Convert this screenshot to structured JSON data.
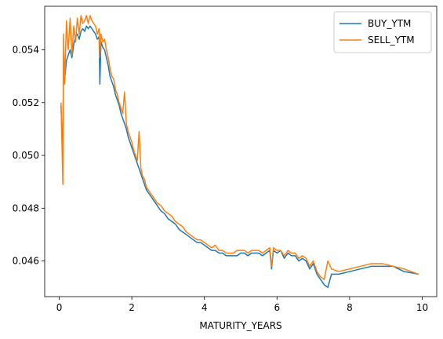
{
  "chart_data": {
    "type": "line",
    "title": "",
    "xlabel": "MATURITY_YEARS",
    "ylabel": "",
    "xlim": [
      -0.4,
      10.4
    ],
    "ylim": [
      0.04465,
      0.05565
    ],
    "x_ticks": [
      0,
      2,
      4,
      6,
      8,
      10
    ],
    "x_tick_labels": [
      "0",
      "2",
      "4",
      "6",
      "8",
      "10"
    ],
    "y_ticks": [
      0.046,
      0.048,
      0.05,
      0.052,
      0.054
    ],
    "y_tick_labels": [
      "0.046",
      "0.048",
      "0.050",
      "0.052",
      "0.054"
    ],
    "grid": false,
    "legend_position": "top-right",
    "series": [
      {
        "name": "BUY_YTM",
        "color": "#1f77b4",
        "x": [
          0.05,
          0.1,
          0.12,
          0.15,
          0.2,
          0.25,
          0.3,
          0.35,
          0.4,
          0.45,
          0.5,
          0.55,
          0.6,
          0.65,
          0.7,
          0.75,
          0.8,
          0.85,
          0.9,
          0.95,
          1.0,
          1.05,
          1.1,
          1.12,
          1.15,
          1.2,
          1.25,
          1.3,
          1.35,
          1.4,
          1.45,
          1.5,
          1.55,
          1.6,
          1.65,
          1.7,
          1.75,
          1.8,
          1.85,
          1.9,
          1.95,
          2.0,
          2.05,
          2.1,
          2.15,
          2.2,
          2.25,
          2.3,
          2.35,
          2.4,
          2.5,
          2.6,
          2.7,
          2.8,
          2.9,
          3.0,
          3.1,
          3.2,
          3.3,
          3.4,
          3.5,
          3.6,
          3.7,
          3.8,
          3.9,
          4.0,
          4.1,
          4.2,
          4.3,
          4.4,
          4.5,
          4.6,
          4.7,
          4.8,
          4.9,
          5.0,
          5.1,
          5.2,
          5.3,
          5.4,
          5.5,
          5.6,
          5.7,
          5.8,
          5.85,
          5.9,
          6.0,
          6.1,
          6.2,
          6.3,
          6.4,
          6.5,
          6.6,
          6.7,
          6.8,
          6.9,
          7.0,
          7.1,
          7.2,
          7.3,
          7.4,
          7.5,
          7.7,
          8.0,
          8.3,
          8.6,
          8.9,
          9.2,
          9.5,
          9.9
        ],
        "y": [
          0.0519,
          0.0496,
          0.0538,
          0.0529,
          0.0536,
          0.0538,
          0.054,
          0.0537,
          0.0542,
          0.0545,
          0.0546,
          0.0544,
          0.0547,
          0.0548,
          0.0547,
          0.0549,
          0.0548,
          0.0549,
          0.0548,
          0.0547,
          0.0546,
          0.0544,
          0.0545,
          0.0527,
          0.0543,
          0.0541,
          0.054,
          0.0537,
          0.0534,
          0.053,
          0.0528,
          0.0526,
          0.0523,
          0.0521,
          0.0519,
          0.0516,
          0.0514,
          0.0512,
          0.051,
          0.0507,
          0.0505,
          0.0503,
          0.0501,
          0.0499,
          0.0497,
          0.0495,
          0.0493,
          0.0491,
          0.0489,
          0.0487,
          0.0485,
          0.0483,
          0.0481,
          0.0479,
          0.0478,
          0.0476,
          0.0475,
          0.0474,
          0.0472,
          0.0471,
          0.047,
          0.0469,
          0.0468,
          0.0467,
          0.0467,
          0.0466,
          0.0465,
          0.0464,
          0.0464,
          0.0463,
          0.0463,
          0.0462,
          0.0462,
          0.0462,
          0.0462,
          0.0463,
          0.0463,
          0.0462,
          0.0463,
          0.0463,
          0.0463,
          0.0462,
          0.0463,
          0.0464,
          0.0457,
          0.0464,
          0.0463,
          0.0464,
          0.0461,
          0.0463,
          0.0462,
          0.0462,
          0.046,
          0.0461,
          0.046,
          0.0457,
          0.0459,
          0.0455,
          0.0453,
          0.0451,
          0.045,
          0.0455,
          0.0455,
          0.0456,
          0.0457,
          0.0458,
          0.0458,
          0.0458,
          0.0456,
          0.0455
        ]
      },
      {
        "name": "SELL_YTM",
        "color": "#ff7f0e",
        "x": [
          0.05,
          0.1,
          0.12,
          0.15,
          0.2,
          0.25,
          0.3,
          0.35,
          0.4,
          0.45,
          0.5,
          0.55,
          0.6,
          0.65,
          0.7,
          0.75,
          0.8,
          0.85,
          0.9,
          0.95,
          1.0,
          1.05,
          1.1,
          1.12,
          1.15,
          1.2,
          1.25,
          1.3,
          1.35,
          1.4,
          1.45,
          1.5,
          1.55,
          1.6,
          1.65,
          1.7,
          1.75,
          1.8,
          1.85,
          1.9,
          1.95,
          2.0,
          2.05,
          2.1,
          2.15,
          2.2,
          2.25,
          2.3,
          2.35,
          2.4,
          2.5,
          2.6,
          2.7,
          2.8,
          2.9,
          3.0,
          3.1,
          3.2,
          3.3,
          3.4,
          3.5,
          3.6,
          3.7,
          3.8,
          3.9,
          4.0,
          4.1,
          4.2,
          4.3,
          4.4,
          4.5,
          4.6,
          4.7,
          4.8,
          4.9,
          5.0,
          5.1,
          5.2,
          5.3,
          5.4,
          5.5,
          5.6,
          5.7,
          5.8,
          5.85,
          5.9,
          6.0,
          6.1,
          6.2,
          6.3,
          6.4,
          6.5,
          6.6,
          6.7,
          6.8,
          6.9,
          7.0,
          7.1,
          7.2,
          7.3,
          7.4,
          7.5,
          7.7,
          8.0,
          8.3,
          8.6,
          8.9,
          9.2,
          9.5,
          9.9
        ],
        "y": [
          0.052,
          0.0489,
          0.0546,
          0.0527,
          0.0551,
          0.054,
          0.0552,
          0.0538,
          0.0549,
          0.0543,
          0.0552,
          0.0546,
          0.0553,
          0.055,
          0.0551,
          0.0553,
          0.055,
          0.0553,
          0.0551,
          0.055,
          0.0549,
          0.0546,
          0.0548,
          0.0537,
          0.0546,
          0.0543,
          0.0544,
          0.054,
          0.0537,
          0.0533,
          0.053,
          0.0529,
          0.0525,
          0.0523,
          0.052,
          0.0518,
          0.0516,
          0.0524,
          0.0512,
          0.0509,
          0.0507,
          0.0505,
          0.0502,
          0.05,
          0.0498,
          0.0509,
          0.0495,
          0.0492,
          0.0491,
          0.0488,
          0.0486,
          0.0484,
          0.0482,
          0.0481,
          0.0479,
          0.0478,
          0.0477,
          0.0475,
          0.0474,
          0.0473,
          0.0471,
          0.047,
          0.0469,
          0.0468,
          0.0468,
          0.0467,
          0.0466,
          0.0465,
          0.0466,
          0.0464,
          0.0464,
          0.0463,
          0.0463,
          0.0463,
          0.0464,
          0.0464,
          0.0464,
          0.0463,
          0.0464,
          0.0464,
          0.0464,
          0.0463,
          0.0464,
          0.0465,
          0.0458,
          0.0465,
          0.0464,
          0.0464,
          0.0462,
          0.0464,
          0.0463,
          0.0463,
          0.0461,
          0.0462,
          0.0461,
          0.0458,
          0.046,
          0.0456,
          0.0454,
          0.0453,
          0.046,
          0.0457,
          0.0456,
          0.0457,
          0.0458,
          0.0459,
          0.0459,
          0.0458,
          0.0457,
          0.0455
        ]
      }
    ]
  }
}
